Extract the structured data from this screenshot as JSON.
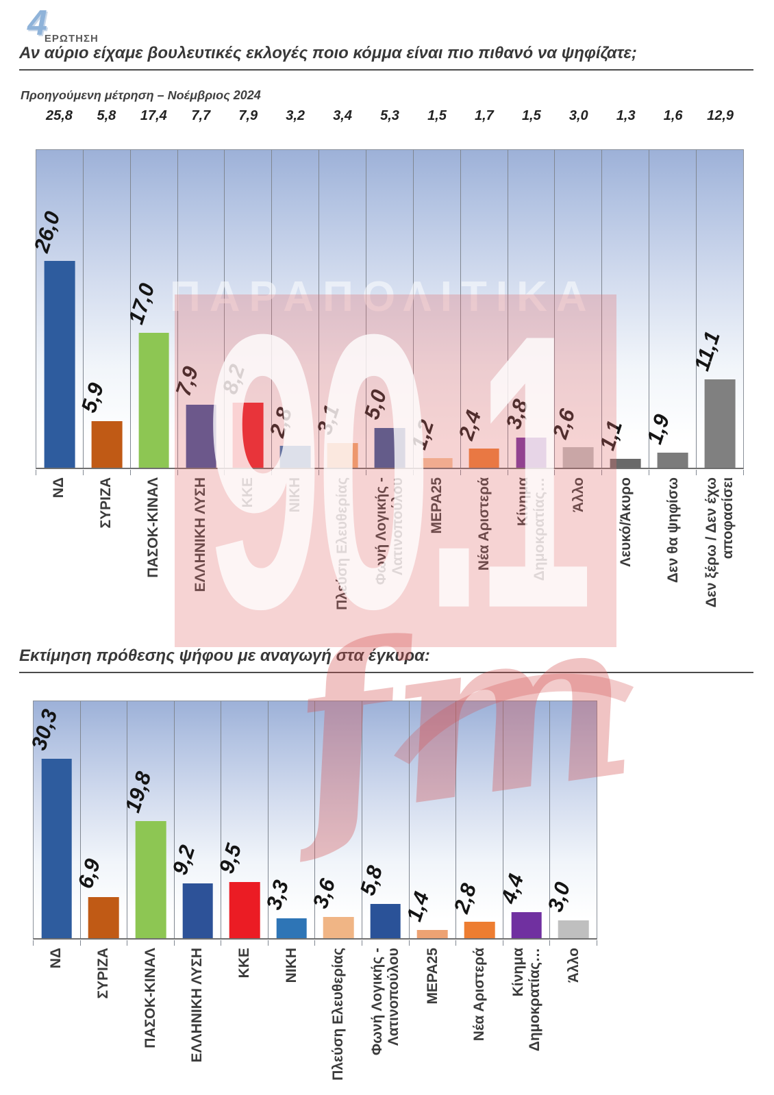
{
  "page": {
    "logo": {
      "number": "4",
      "word": "ΕΡΩΤΗΣΗ"
    },
    "question_title": "Αν αύριο είχαμε βουλευτικές εκλογές ποιο κόμμα είναι πιο πιθανό να ψηφίζατε;",
    "previous_note": "Προηγούμενη μέτρηση – Νοέμβριος 2024",
    "second_title": "Εκτίμηση πρόθεσης ψήφου με αναγωγή στα έγκυρα:",
    "watermark": {
      "newspaper": "ΠΑΡΑΠΟΛΙΤΙΚΑ",
      "station": "90.1",
      "fm": "fm",
      "pink": "#d45454"
    }
  },
  "chart_data": [
    {
      "type": "bar",
      "title": "Αν αύριο είχαμε βουλευτικές εκλογές ποιο κόμμα είναι πιο πιθανό να ψηφίζατε;",
      "previous_series_label": "Προηγούμενη μέτρηση – Νοέμβριος 2024",
      "ylim": [
        0,
        40
      ],
      "legend_position": "none",
      "grid": "vertical-column-separators",
      "categories": [
        "ΝΔ",
        "ΣΥΡΙΖΑ",
        "ΠΑΣΟΚ-ΚΙΝΑΛ",
        "ΕΛΛΗΝΙΚΗ ΛΥΣΗ",
        "ΚΚΕ",
        "ΝΙΚΗ",
        "Πλεύση Ελευθερίας",
        "Φωνή Λογικής -\nΛατινοπούλου",
        "ΜΕΡΑ25",
        "Νέα Αριστερά",
        "Κίνημα\nΔημοκρατίας…",
        "Άλλο",
        "Λευκό/Άκυρο",
        "Δεν θα ψηφίσω",
        "Δεν ξέρω / Δεν έχω\nαποφασίσει"
      ],
      "values": [
        26.0,
        5.9,
        17.0,
        7.9,
        8.2,
        2.8,
        3.1,
        5.0,
        1.2,
        2.4,
        3.8,
        2.6,
        1.1,
        1.9,
        11.1
      ],
      "value_labels": [
        "26,0",
        "5,9",
        "17,0",
        "7,9",
        "8,2",
        "2,8",
        "3,1",
        "5,0",
        "1,2",
        "2,4",
        "3,8",
        "2,6",
        "1,1",
        "1,9",
        "11,1"
      ],
      "previous_values": [
        25.8,
        5.8,
        17.4,
        7.7,
        7.9,
        3.2,
        3.4,
        5.3,
        1.5,
        1.7,
        1.5,
        3.0,
        1.3,
        1.6,
        12.9
      ],
      "previous_value_labels": [
        "25,8",
        "5,8",
        "17,4",
        "7,7",
        "7,9",
        "3,2",
        "3,4",
        "5,3",
        "1,5",
        "1,7",
        "1,5",
        "3,0",
        "1,3",
        "1,6",
        "12,9"
      ],
      "colors": [
        "#2e5c9e",
        "#c05a15",
        "#8dc653",
        "#3a4f99",
        "#eb1c24",
        "#2e75b6",
        "#f2a96e",
        "#2f5597",
        "#f6c69e",
        "#ed7d31",
        "#7030a0",
        "#bfbfbf",
        "#696969",
        "#7b7b7b",
        "#808080"
      ]
    },
    {
      "type": "bar",
      "title": "Εκτίμηση πρόθεσης ψήφου με αναγωγή στα έγκυρα:",
      "ylim": [
        0,
        40
      ],
      "legend_position": "none",
      "grid": "vertical-column-separators",
      "categories": [
        "ΝΔ",
        "ΣΥΡΙΖΑ",
        "ΠΑΣΟΚ-ΚΙΝΑΛ",
        "ΕΛΛΗΝΙΚΗ ΛΥΣΗ",
        "ΚΚΕ",
        "ΝΙΚΗ",
        "Πλεύση Ελευθερίας",
        "Φωνή Λογικής -\nΛατινοπούλου",
        "ΜΕΡΑ25",
        "Νέα Αριστερά",
        "Κίνημα\nΔημοκρατίας…",
        "Άλλο"
      ],
      "values": [
        30.3,
        6.9,
        19.8,
        9.2,
        9.5,
        3.3,
        3.6,
        5.8,
        1.4,
        2.8,
        4.4,
        3.0
      ],
      "value_labels": [
        "30,3",
        "6,9",
        "19,8",
        "9,2",
        "9,5",
        "3,3",
        "3,6",
        "5,8",
        "1,4",
        "2,8",
        "4,4",
        "3,0"
      ],
      "colors": [
        "#2e5c9e",
        "#c05a15",
        "#8dc653",
        "#2d5298",
        "#eb1c24",
        "#2e75b6",
        "#f0b585",
        "#2a5298",
        "#eda273",
        "#ed7d31",
        "#7030a0",
        "#bfbfbf"
      ]
    }
  ]
}
